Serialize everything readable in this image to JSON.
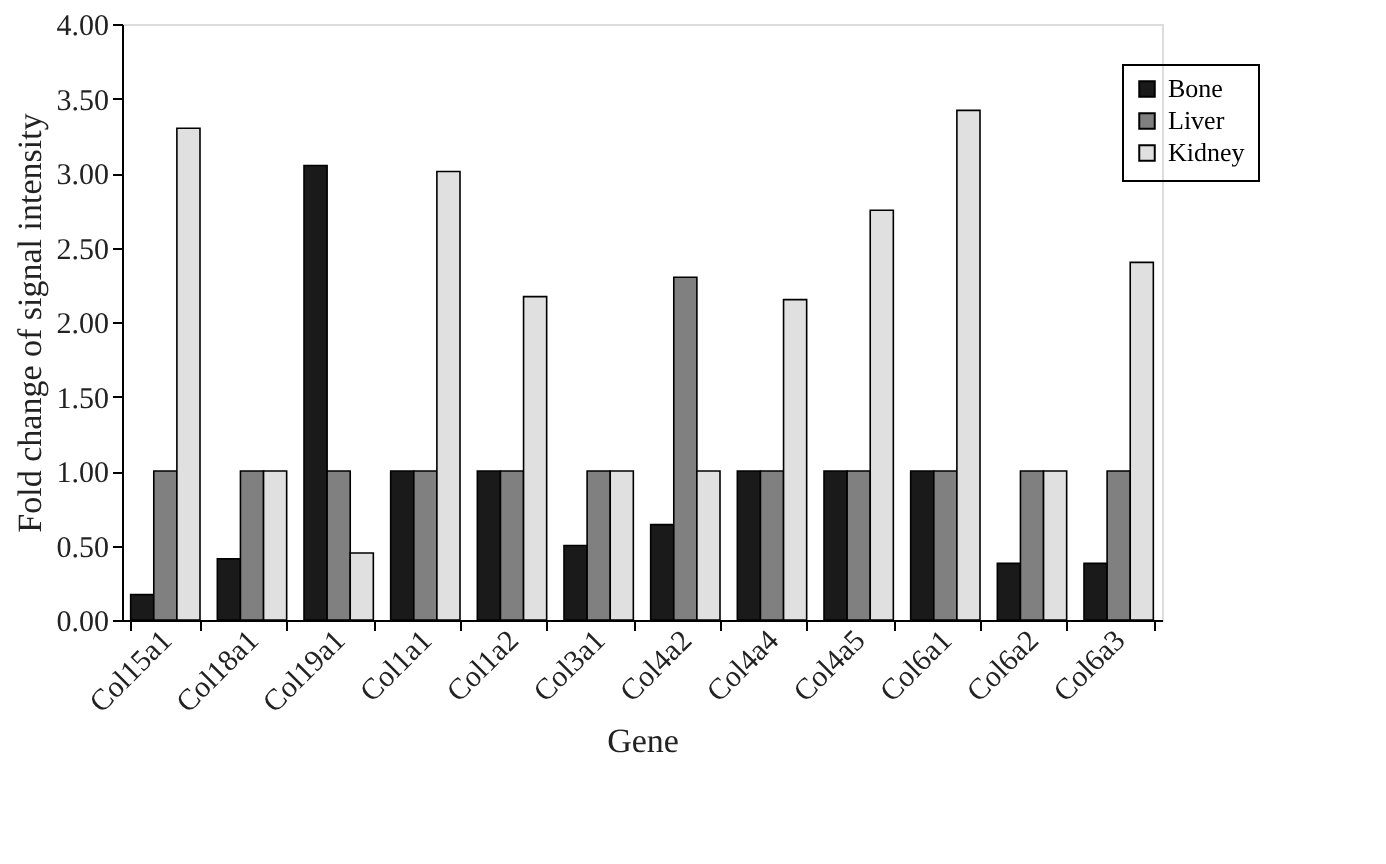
{
  "chart_data": {
    "type": "bar",
    "xlabel": "Gene",
    "ylabel": "Fold change of signal intensity",
    "categories": [
      "Col15a1",
      "Col18a1",
      "Col19a1",
      "Col1a1",
      "Col1a2",
      "Col3a1",
      "Col4a2",
      "Col4a4",
      "Col4a5",
      "Col6a1",
      "Col6a2",
      "Col6a3"
    ],
    "series": [
      {
        "name": "Bone",
        "color": "#1a1a1a",
        "values": [
          0.17,
          0.41,
          3.05,
          1.0,
          1.0,
          0.5,
          0.64,
          1.0,
          1.0,
          1.0,
          0.38,
          0.38
        ]
      },
      {
        "name": "Liver",
        "color": "#808080",
        "values": [
          1.0,
          1.0,
          1.0,
          1.0,
          1.0,
          1.0,
          2.3,
          1.0,
          1.0,
          1.0,
          1.0,
          1.0
        ]
      },
      {
        "name": "Kidney",
        "color": "#e0e0e0",
        "values": [
          3.3,
          1.0,
          0.45,
          3.01,
          2.17,
          1.0,
          1.0,
          2.15,
          2.75,
          3.42,
          1.0,
          2.4
        ]
      }
    ],
    "ylim": [
      0,
      4
    ],
    "yticks": [
      {
        "value": 0,
        "label": "0.00"
      },
      {
        "value": 0.5,
        "label": "0.50"
      },
      {
        "value": 1,
        "label": "1.00"
      },
      {
        "value": 1.5,
        "label": "1.50"
      },
      {
        "value": 2,
        "label": "2.00"
      },
      {
        "value": 2.5,
        "label": "2.50"
      },
      {
        "value": 3,
        "label": "3.00"
      },
      {
        "value": 3.5,
        "label": "3.50"
      },
      {
        "value": 4,
        "label": "4.00"
      }
    ],
    "grid": false,
    "legend": "top right"
  }
}
